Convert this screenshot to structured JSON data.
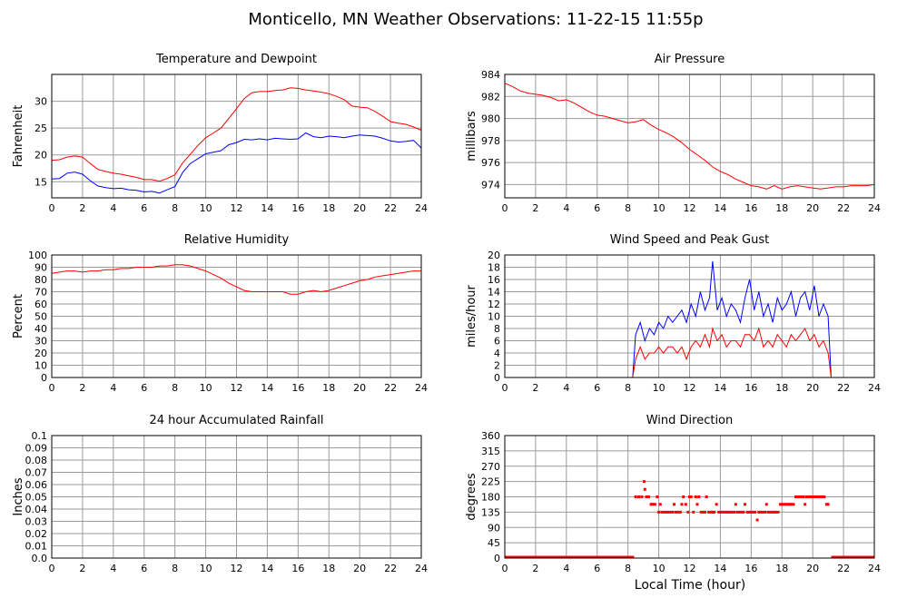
{
  "page_title": "Monticello, MN Weather Observations: 11-22-15 11:55p",
  "x_axis_label": "Local Time (hour)",
  "colors": {
    "red": "#ff0000",
    "blue": "#0000ff",
    "grid": "#9a9a9a",
    "frame": "#000000"
  },
  "x_ticks": [
    0,
    2,
    4,
    6,
    8,
    10,
    12,
    14,
    16,
    18,
    20,
    22,
    24
  ],
  "chart_data": [
    {
      "id": "temp",
      "type": "line",
      "title": "Temperature and Dewpoint",
      "xlabel": "",
      "ylabel": "Fahrenheit",
      "xlim": [
        0,
        24
      ],
      "ylim": [
        12,
        35
      ],
      "yticks": [
        "15",
        "20",
        "25",
        "30"
      ],
      "ytick_values": [
        15,
        20,
        25,
        30
      ],
      "series": [
        {
          "color": "#ff0000",
          "x": [
            0,
            0.5,
            1,
            1.5,
            2,
            2.5,
            3,
            3.5,
            4,
            4.5,
            5,
            5.5,
            6,
            6.5,
            7,
            7.5,
            8,
            8.5,
            9,
            9.5,
            10,
            10.5,
            11,
            11.5,
            12,
            12.5,
            13,
            13.5,
            14,
            14.5,
            15,
            15.5,
            16,
            16.5,
            17,
            17.5,
            18,
            18.5,
            19,
            19.5,
            20,
            20.5,
            21,
            21.5,
            22,
            22.5,
            23,
            23.5,
            24
          ],
          "y": [
            19,
            19.1,
            19.6,
            19.8,
            19.6,
            18.4,
            17.3,
            16.9,
            16.6,
            16.4,
            16.1,
            15.8,
            15.4,
            15.4,
            15.1,
            15.6,
            16.3,
            18.5,
            20.1,
            21.8,
            23.2,
            24.1,
            25,
            26.8,
            28.6,
            30.5,
            31.6,
            31.8,
            31.8,
            32,
            32.1,
            32.5,
            32.4,
            32.1,
            31.9,
            31.7,
            31.4,
            30.9,
            30.3,
            29.1,
            28.9,
            28.8,
            28.1,
            27.2,
            26.2,
            25.9,
            25.7,
            25.2,
            24.6
          ]
        },
        {
          "color": "#0000ff",
          "x": [
            0,
            0.5,
            1,
            1.5,
            2,
            2.5,
            3,
            3.5,
            4,
            4.5,
            5,
            5.5,
            6,
            6.5,
            7,
            7.5,
            8,
            8.5,
            9,
            9.5,
            10,
            10.5,
            11,
            11.5,
            12,
            12.5,
            13,
            13.5,
            14,
            14.5,
            15,
            15.5,
            16,
            16.5,
            17,
            17.5,
            18,
            18.5,
            19,
            19.5,
            20,
            20.5,
            21,
            21.5,
            22,
            22.5,
            23,
            23.5,
            24
          ],
          "y": [
            15.5,
            15.6,
            16.6,
            16.8,
            16.4,
            15.2,
            14.2,
            13.9,
            13.7,
            13.8,
            13.5,
            13.4,
            13.1,
            13.2,
            12.9,
            13.5,
            14.1,
            16.7,
            18.4,
            19.3,
            20.2,
            20.5,
            20.8,
            21.9,
            22.3,
            22.9,
            22.8,
            23,
            22.8,
            23.1,
            23,
            22.9,
            23,
            24.1,
            23.4,
            23.2,
            23.5,
            23.4,
            23.2,
            23.5,
            23.7,
            23.6,
            23.5,
            23.1,
            22.6,
            22.4,
            22.5,
            22.7,
            21.3
          ]
        }
      ]
    },
    {
      "id": "pressure",
      "type": "line",
      "title": "Air Pressure",
      "xlabel": "",
      "ylabel": "millibars",
      "xlim": [
        0,
        24
      ],
      "ylim": [
        972.8,
        984
      ],
      "yticks": [
        "974",
        "976",
        "978",
        "980",
        "982",
        "984"
      ],
      "ytick_values": [
        974,
        976,
        978,
        980,
        982,
        984
      ],
      "series": [
        {
          "color": "#ff0000",
          "x": [
            0,
            0.5,
            1,
            1.5,
            2,
            2.5,
            3,
            3.5,
            4,
            4.5,
            5,
            5.5,
            6,
            6.5,
            7,
            7.5,
            8,
            8.5,
            9,
            9.5,
            10,
            10.5,
            11,
            11.5,
            12,
            12.5,
            13,
            13.5,
            14,
            14.5,
            15,
            15.5,
            16,
            16.5,
            17,
            17.5,
            18,
            18.5,
            19,
            19.5,
            20,
            20.5,
            21,
            21.5,
            22,
            22.5,
            23,
            23.5,
            24
          ],
          "y": [
            983.2,
            982.9,
            982.5,
            982.3,
            982.2,
            982.1,
            981.9,
            981.6,
            981.7,
            981.4,
            981,
            980.6,
            980.3,
            980.2,
            980,
            979.8,
            979.6,
            979.7,
            979.9,
            979.4,
            979,
            978.7,
            978.3,
            977.8,
            977.2,
            976.7,
            976.2,
            975.6,
            975.2,
            974.9,
            974.5,
            974.2,
            973.9,
            973.8,
            973.6,
            973.9,
            973.6,
            973.8,
            973.9,
            973.8,
            973.7,
            973.6,
            973.7,
            973.8,
            973.8,
            973.9,
            973.9,
            973.9,
            974
          ]
        }
      ]
    },
    {
      "id": "humidity",
      "type": "line",
      "title": "Relative Humidity",
      "xlabel": "",
      "ylabel": "Percent",
      "xlim": [
        0,
        24
      ],
      "ylim": [
        0,
        100
      ],
      "yticks": [
        "0",
        "10",
        "20",
        "30",
        "40",
        "50",
        "60",
        "70",
        "80",
        "90",
        "100"
      ],
      "ytick_values": [
        0,
        10,
        20,
        30,
        40,
        50,
        60,
        70,
        80,
        90,
        100
      ],
      "series": [
        {
          "color": "#ff0000",
          "x": [
            0,
            0.5,
            1,
            1.5,
            2,
            2.5,
            3,
            3.5,
            4,
            4.5,
            5,
            5.5,
            6,
            6.5,
            7,
            7.5,
            8,
            8.5,
            9,
            9.5,
            10,
            10.5,
            11,
            11.5,
            12,
            12.5,
            13,
            13.5,
            14,
            14.5,
            15,
            15.5,
            16,
            16.5,
            17,
            17.5,
            18,
            18.5,
            19,
            19.5,
            20,
            20.5,
            21,
            21.5,
            22,
            22.5,
            23,
            23.5,
            24
          ],
          "y": [
            85,
            86,
            87,
            87,
            86,
            87,
            87,
            88,
            88,
            89,
            89,
            90,
            90,
            90,
            91,
            91,
            92,
            92,
            91,
            89,
            87,
            84,
            81,
            77,
            74,
            71,
            70,
            70,
            70,
            70,
            70,
            68,
            68,
            70,
            71,
            70,
            71,
            73,
            75,
            77,
            79,
            80,
            82,
            83,
            84,
            85,
            86,
            87,
            87
          ]
        }
      ]
    },
    {
      "id": "wind",
      "type": "line",
      "title": "Wind Speed and Peak Gust",
      "xlabel": "",
      "ylabel": "miles/hour",
      "xlim": [
        0,
        24
      ],
      "ylim": [
        0,
        20
      ],
      "yticks": [
        "0",
        "2",
        "4",
        "6",
        "8",
        "10",
        "12",
        "14",
        "16",
        "18",
        "20"
      ],
      "ytick_values": [
        0,
        2,
        4,
        6,
        8,
        10,
        12,
        14,
        16,
        18,
        20
      ],
      "series": [
        {
          "color": "#0000ff",
          "x": [
            0,
            8.3,
            8.5,
            8.8,
            9.1,
            9.4,
            9.7,
            10,
            10.3,
            10.6,
            10.9,
            11.2,
            11.5,
            11.8,
            12.1,
            12.4,
            12.7,
            13,
            13.3,
            13.5,
            13.8,
            14.1,
            14.4,
            14.7,
            15,
            15.3,
            15.6,
            15.9,
            16.2,
            16.5,
            16.8,
            17.1,
            17.4,
            17.7,
            18,
            18.3,
            18.6,
            18.9,
            19.2,
            19.5,
            19.8,
            20.1,
            20.4,
            20.7,
            21,
            21.2,
            24
          ],
          "y": [
            0,
            0,
            7,
            9,
            6,
            8,
            7,
            9,
            8,
            10,
            9,
            10,
            11,
            9,
            12,
            10,
            14,
            11,
            13,
            19,
            11,
            13,
            10,
            12,
            11,
            9,
            13,
            16,
            11,
            14,
            10,
            12,
            9,
            13,
            11,
            12,
            14,
            10,
            13,
            14,
            11,
            15,
            10,
            12,
            10,
            0,
            0
          ]
        },
        {
          "color": "#ff0000",
          "x": [
            0,
            8.3,
            8.5,
            8.8,
            9.1,
            9.4,
            9.7,
            10,
            10.3,
            10.6,
            10.9,
            11.2,
            11.5,
            11.8,
            12.1,
            12.4,
            12.7,
            13,
            13.3,
            13.5,
            13.8,
            14.1,
            14.4,
            14.7,
            15,
            15.3,
            15.6,
            15.9,
            16.2,
            16.5,
            16.8,
            17.1,
            17.4,
            17.7,
            18,
            18.3,
            18.6,
            18.9,
            19.2,
            19.5,
            19.8,
            20.1,
            20.4,
            20.7,
            21,
            21.2,
            24
          ],
          "y": [
            0,
            0,
            3,
            5,
            3,
            4,
            4,
            5,
            4,
            5,
            5,
            4,
            5,
            3,
            5,
            6,
            5,
            7,
            5,
            8,
            6,
            7,
            5,
            6,
            6,
            5,
            7,
            7,
            6,
            8,
            5,
            6,
            5,
            7,
            6,
            5,
            7,
            6,
            7,
            8,
            6,
            7,
            5,
            6,
            4,
            0,
            0
          ]
        }
      ]
    },
    {
      "id": "rain",
      "type": "line",
      "title": "24 hour Accumulated Rainfall",
      "xlabel": "",
      "ylabel": "Inches",
      "xlim": [
        0,
        24
      ],
      "ylim": [
        0,
        0.1
      ],
      "yticks": [
        "0.0",
        "0.01",
        "0.02",
        "0.03",
        "0.04",
        "0.05",
        "0.06",
        "0.07",
        "0.08",
        "0.09",
        "0.1"
      ],
      "ytick_values": [
        0,
        0.01,
        0.02,
        0.03,
        0.04,
        0.05,
        0.06,
        0.07,
        0.08,
        0.09,
        0.1
      ],
      "series": [
        {
          "color": "#ff0000",
          "x": [
            0,
            24
          ],
          "y": [
            0,
            0
          ]
        }
      ]
    },
    {
      "id": "direction",
      "type": "scatter",
      "title": "Wind Direction",
      "xlabel": "Local Time (hour)",
      "ylabel": "degrees",
      "xlim": [
        0,
        24
      ],
      "ylim": [
        0,
        360
      ],
      "yticks": [
        "0",
        "45",
        "90",
        "135",
        "180",
        "225",
        "270",
        "315",
        "360"
      ],
      "ytick_values": [
        0,
        45,
        90,
        135,
        180,
        225,
        270,
        315,
        360
      ],
      "zero_spans": [
        [
          0,
          8.4
        ],
        [
          21.2,
          24
        ]
      ],
      "series": [
        {
          "color": "#ff0000",
          "x": [
            8.5,
            8.7,
            8.9,
            9.05,
            9.1,
            9.2,
            9.35,
            9.5,
            9.6,
            9.75,
            9.9,
            10.0,
            10.1,
            10.2,
            10.35,
            10.5,
            10.6,
            10.75,
            10.9,
            11.0,
            11.1,
            11.25,
            11.4,
            11.5,
            11.6,
            11.75,
            11.9,
            12.0,
            12.1,
            12.25,
            12.4,
            12.5,
            12.6,
            12.75,
            12.9,
            13.0,
            13.1,
            13.25,
            13.4,
            13.5,
            13.6,
            13.75,
            13.9,
            14.0,
            14.1,
            14.25,
            14.4,
            14.5,
            14.6,
            14.75,
            14.9,
            15.0,
            15.1,
            15.25,
            15.4,
            15.5,
            15.6,
            15.75,
            15.9,
            16.0,
            16.1,
            16.25,
            16.4,
            16.5,
            16.6,
            16.75,
            16.9,
            17.0,
            17.1,
            17.25,
            17.4,
            17.5,
            17.6,
            17.75,
            17.9,
            18.0,
            18.1,
            18.25,
            18.4,
            18.5,
            18.6,
            18.75,
            18.9,
            19.0,
            19.1,
            19.25,
            19.4,
            19.5,
            19.6,
            19.75,
            19.9,
            20.0,
            20.1,
            20.25,
            20.4,
            20.5,
            20.6,
            20.75,
            20.9,
            21.0
          ],
          "y": [
            180,
            180,
            180,
            225,
            202,
            180,
            180,
            158,
            158,
            158,
            180,
            135,
            158,
            135,
            135,
            135,
            135,
            135,
            135,
            158,
            135,
            135,
            135,
            158,
            180,
            158,
            135,
            180,
            180,
            135,
            180,
            158,
            180,
            135,
            135,
            135,
            180,
            135,
            135,
            135,
            135,
            158,
            135,
            135,
            135,
            135,
            135,
            135,
            135,
            135,
            135,
            158,
            135,
            135,
            135,
            135,
            158,
            135,
            135,
            135,
            135,
            135,
            112,
            135,
            135,
            135,
            135,
            158,
            135,
            135,
            135,
            135,
            135,
            135,
            158,
            158,
            158,
            158,
            158,
            158,
            158,
            158,
            180,
            180,
            180,
            180,
            180,
            158,
            180,
            180,
            180,
            180,
            180,
            180,
            180,
            180,
            180,
            180,
            158,
            158
          ]
        }
      ]
    }
  ]
}
